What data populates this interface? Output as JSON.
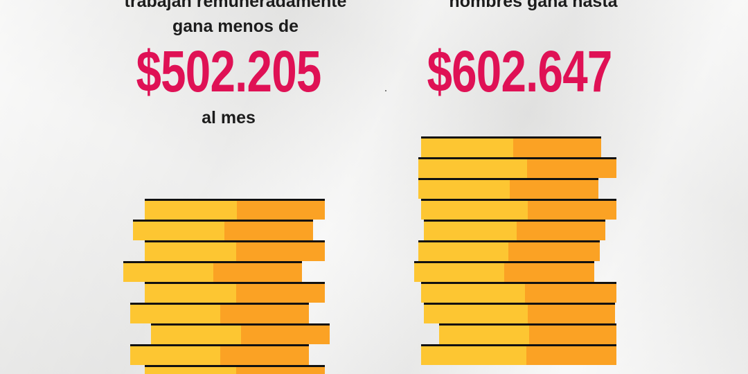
{
  "left": {
    "line1": "trabajan remuneradamente",
    "line2": "gana menos de",
    "amount": "$502.205",
    "line3": "al mes"
  },
  "right": {
    "line1": "hombres gana hasta",
    "amount": "$602.647"
  },
  "colors": {
    "accent": "#df1155",
    "coin_light": "#fdc632",
    "coin_dark": "#fba224",
    "coin_edge": "#111111",
    "background": "#ededec"
  }
}
